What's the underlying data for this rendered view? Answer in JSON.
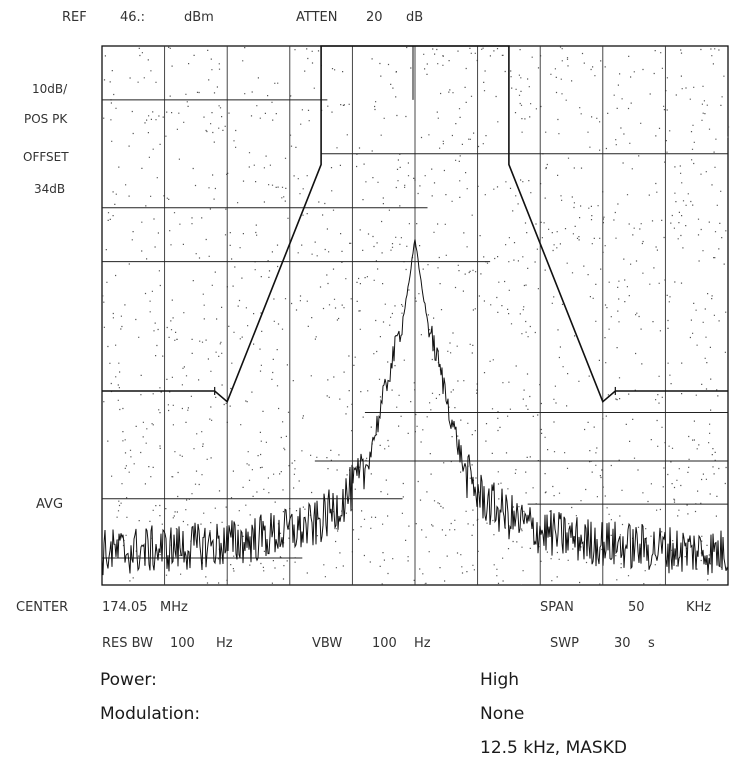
{
  "header": {
    "ref_label": "REF",
    "ref_value": "46.:",
    "ref_unit": "dBm",
    "atten_label": "ATTEN",
    "atten_value": "20",
    "atten_unit": "dB"
  },
  "side": {
    "scale": "10dB/",
    "detector": "POS PK",
    "offset_label": "OFFSET",
    "offset_value": "34dB",
    "avg": "AVG"
  },
  "footer": {
    "center_label": "CENTER",
    "center_value": "174.05",
    "center_unit": "MHz",
    "span_label": "SPAN",
    "span_value": "50",
    "span_unit": "KHz",
    "res_bw_label": "RES BW",
    "res_bw_value": "100",
    "res_bw_unit": "Hz",
    "vbw_label": "VBW",
    "vbw_value": "100",
    "vbw_unit": "Hz",
    "swp_label": "SWP",
    "swp_value": "30",
    "swp_unit": "s"
  },
  "info": {
    "power_label": "Power:",
    "power_value": "High",
    "modulation_label": "Modulation:",
    "modulation_value": "None",
    "channel": "12.5  kHz,  MASKD"
  },
  "chart_data": {
    "type": "line",
    "xlabel": "",
    "ylabel": "",
    "xlim": [
      -25,
      25
    ],
    "ylim": [
      -54,
      46
    ],
    "grid": true,
    "x_divisions": 10,
    "y_divisions": 10,
    "series": [
      {
        "x": [
          -25,
          -16,
          -15,
          -7.5,
          -7.5,
          7.5,
          7.5,
          15,
          16,
          25
        ],
        "y": [
          -18,
          -18,
          -20,
          24,
          46,
          46,
          24,
          -20,
          -18,
          -18
        ]
      },
      {
        "x": [
          -25,
          -18,
          -14,
          -12,
          -10,
          -8,
          -6,
          -4,
          -3,
          -2,
          -1,
          -0.5,
          0,
          0.5,
          1,
          2,
          3,
          4,
          5,
          6,
          8,
          10,
          12,
          14,
          18,
          25
        ],
        "y": [
          -48,
          -47,
          -46,
          -45,
          -44,
          -43,
          -39,
          -33,
          -24,
          -14,
          -5,
          2,
          10,
          2,
          -5,
          -14,
          -24,
          -33,
          -37,
          -39,
          -42,
          -44,
          -45,
          -46,
          -47,
          -48
        ]
      }
    ],
    "mask_segments": [
      {
        "x": [
          -25,
          -7
        ],
        "y": [
          36,
          36
        ]
      },
      {
        "x": [
          -7.5,
          25
        ],
        "y": [
          26,
          26
        ]
      },
      {
        "x": [
          -25,
          1
        ],
        "y": [
          16,
          16
        ]
      },
      {
        "x": [
          -25,
          6
        ],
        "y": [
          6,
          6
        ]
      },
      {
        "x": [
          -4,
          25
        ],
        "y": [
          -22,
          -22
        ]
      },
      {
        "x": [
          -8,
          25
        ],
        "y": [
          -31,
          -31
        ]
      },
      {
        "x": [
          -25,
          -1
        ],
        "y": [
          -38,
          -38
        ]
      },
      {
        "x": [
          9,
          25
        ],
        "y": [
          -39,
          -39
        ]
      },
      {
        "x": [
          -25,
          -9
        ],
        "y": [
          -49,
          -49
        ]
      }
    ],
    "markers": [
      {
        "x": 0,
        "y": 36
      }
    ]
  }
}
